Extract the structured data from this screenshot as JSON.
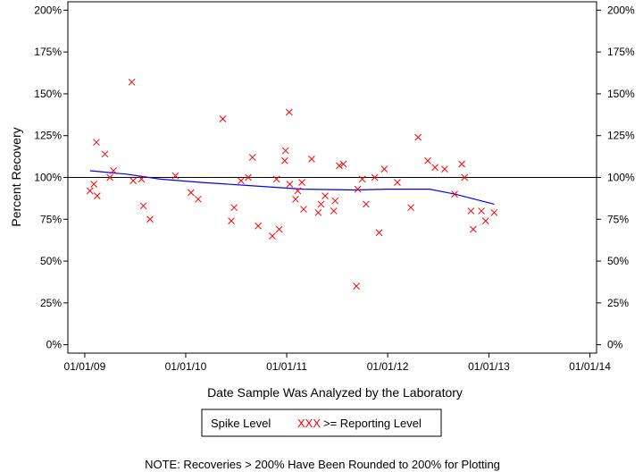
{
  "chart_data": {
    "type": "scatter",
    "xlabel": "Date Sample Was Analyzed by the Laboratory",
    "ylabel": "Percent Recovery",
    "x_tick_labels": [
      "01/01/09",
      "01/01/10",
      "01/01/11",
      "01/01/12",
      "01/01/13",
      "01/01/14"
    ],
    "y_tick_labels": [
      "0%",
      "25%",
      "50%",
      "75%",
      "100%",
      "125%",
      "150%",
      "175%",
      "200%"
    ],
    "xlim": [
      "2008-11-01",
      "2014-01-25"
    ],
    "ylim": [
      -5,
      205
    ],
    "reference_line": 100,
    "legend": {
      "title": "Spike Level",
      "marker_label": "XXX",
      "series_label": ">= Reporting Level"
    },
    "note": "NOTE: Recoveries > 200% Have Been Rounded to 200% for Plotting",
    "colors": {
      "points": "#ff0000",
      "trend": "#0000ff",
      "axes": "#000000"
    },
    "series": [
      {
        "name": ">= Reporting Level",
        "points": [
          [
            "2009-01-20",
            92
          ],
          [
            "2009-02-03",
            96
          ],
          [
            "2009-02-12",
            121
          ],
          [
            "2009-02-15",
            89
          ],
          [
            "2009-03-15",
            114
          ],
          [
            "2009-04-02",
            100
          ],
          [
            "2009-04-15",
            104
          ],
          [
            "2009-06-20",
            157
          ],
          [
            "2009-06-25",
            98
          ],
          [
            "2009-07-25",
            99
          ],
          [
            "2009-08-01",
            83
          ],
          [
            "2009-08-25",
            75
          ],
          [
            "2009-11-25",
            101
          ],
          [
            "2010-01-20",
            91
          ],
          [
            "2010-02-15",
            87
          ],
          [
            "2010-05-15",
            135
          ],
          [
            "2010-06-15",
            74
          ],
          [
            "2010-06-25",
            82
          ],
          [
            "2010-07-20",
            98
          ],
          [
            "2010-08-15",
            100
          ],
          [
            "2010-08-30",
            112
          ],
          [
            "2010-09-20",
            71
          ],
          [
            "2010-11-10",
            65
          ],
          [
            "2010-11-25",
            99
          ],
          [
            "2010-12-05",
            69
          ],
          [
            "2010-12-25",
            110
          ],
          [
            "2010-12-28",
            116
          ],
          [
            "2011-01-10",
            139
          ],
          [
            "2011-01-12",
            96
          ],
          [
            "2011-02-02",
            87
          ],
          [
            "2011-02-10",
            92
          ],
          [
            "2011-02-25",
            97
          ],
          [
            "2011-03-03",
            81
          ],
          [
            "2011-04-01",
            111
          ],
          [
            "2011-04-25",
            79
          ],
          [
            "2011-05-05",
            84
          ],
          [
            "2011-05-20",
            89
          ],
          [
            "2011-06-20",
            80
          ],
          [
            "2011-06-25",
            86
          ],
          [
            "2011-07-10",
            107
          ],
          [
            "2011-07-25",
            108
          ],
          [
            "2011-09-10",
            35
          ],
          [
            "2011-09-15",
            93
          ],
          [
            "2011-10-01",
            99
          ],
          [
            "2011-10-15",
            84
          ],
          [
            "2011-11-15",
            100
          ],
          [
            "2011-12-01",
            67
          ],
          [
            "2011-12-20",
            105
          ],
          [
            "2012-02-05",
            97
          ],
          [
            "2012-03-25",
            82
          ],
          [
            "2012-04-20",
            124
          ],
          [
            "2012-05-25",
            110
          ],
          [
            "2012-06-20",
            106
          ],
          [
            "2012-07-25",
            105
          ],
          [
            "2012-08-30",
            90
          ],
          [
            "2012-09-25",
            108
          ],
          [
            "2012-10-05",
            100
          ],
          [
            "2012-10-28",
            80
          ],
          [
            "2012-11-05",
            69
          ],
          [
            "2012-12-05",
            80
          ],
          [
            "2012-12-20",
            74
          ],
          [
            "2013-01-20",
            79
          ]
        ]
      },
      {
        "name": "trend",
        "points": [
          [
            "2009-01-20",
            104
          ],
          [
            "2009-06-01",
            102
          ],
          [
            "2009-10-01",
            99
          ],
          [
            "2010-03-01",
            97
          ],
          [
            "2010-09-01",
            95
          ],
          [
            "2011-03-01",
            93
          ],
          [
            "2011-09-01",
            92.5
          ],
          [
            "2012-01-01",
            93
          ],
          [
            "2012-06-01",
            93
          ],
          [
            "2012-09-01",
            90
          ],
          [
            "2013-01-20",
            84
          ]
        ]
      }
    ]
  }
}
